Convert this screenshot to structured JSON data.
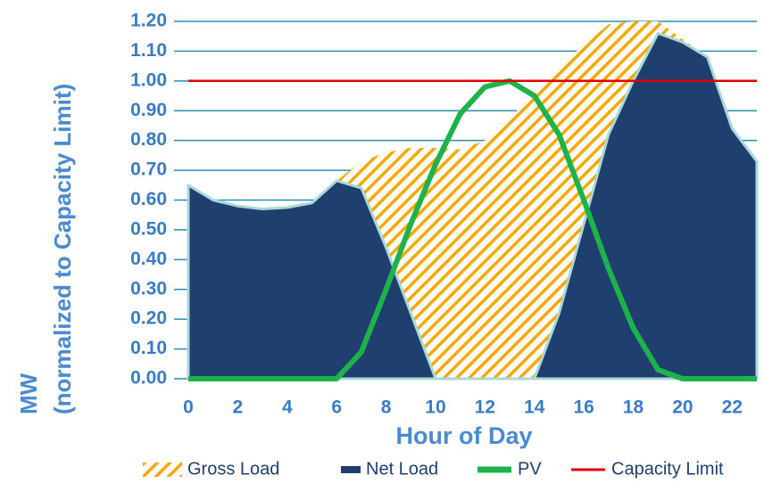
{
  "chart_data": {
    "type": "area",
    "xlabel": "Hour of Day",
    "ylabel": [
      "MW",
      "(normalized to Capacity Limit)"
    ],
    "x": [
      0,
      1,
      2,
      3,
      4,
      5,
      6,
      7,
      8,
      9,
      10,
      11,
      12,
      13,
      14,
      15,
      16,
      17,
      18,
      19,
      20,
      21,
      22,
      23
    ],
    "xlim": [
      0,
      23
    ],
    "xticks": [
      0,
      2,
      4,
      6,
      8,
      10,
      12,
      14,
      16,
      18,
      20,
      22
    ],
    "ylim": [
      0,
      1.2
    ],
    "yticks": [
      {
        "value": 0,
        "label": "0.00"
      },
      {
        "value": 0.1,
        "label": "0.10"
      },
      {
        "value": 0.2,
        "label": "0.20"
      },
      {
        "value": 0.3,
        "label": "0.30"
      },
      {
        "value": 0.4,
        "label": "0.40"
      },
      {
        "value": 0.5,
        "label": "0.50"
      },
      {
        "value": 0.6,
        "label": "0.60"
      },
      {
        "value": 0.7,
        "label": "0.70"
      },
      {
        "value": 0.8,
        "label": "0.80"
      },
      {
        "value": 0.9,
        "label": "0.90"
      },
      {
        "value": 1.0,
        "label": "1.00"
      },
      {
        "value": 1.1,
        "label": "1.10"
      },
      {
        "value": 1.2,
        "label": "1.20"
      }
    ],
    "grid": true,
    "legend": "bottom",
    "series": [
      {
        "name": "Gross Load",
        "kind": "area",
        "pattern": "hatch",
        "color": "#f5a800",
        "values": [
          0.65,
          0.6,
          0.58,
          0.57,
          0.575,
          0.59,
          0.665,
          0.73,
          0.76,
          0.775,
          0.775,
          0.77,
          0.8,
          0.87,
          0.97,
          1.05,
          1.12,
          1.19,
          1.2,
          1.2,
          1.14,
          1.08,
          0.84,
          0.73
        ]
      },
      {
        "name": "Net Load",
        "kind": "area",
        "color": "#1f3f6e",
        "values": [
          0.65,
          0.6,
          0.58,
          0.57,
          0.575,
          0.59,
          0.665,
          0.64,
          0.44,
          0.22,
          0,
          0,
          0,
          0,
          0,
          0.22,
          0.52,
          0.82,
          1.0,
          1.16,
          1.13,
          1.08,
          0.84,
          0.73
        ]
      },
      {
        "name": "PV",
        "kind": "line",
        "color": "#1db34a",
        "values": [
          0,
          0,
          0,
          0,
          0,
          0,
          0,
          0.09,
          0.3,
          0.52,
          0.72,
          0.89,
          0.98,
          1.0,
          0.95,
          0.82,
          0.6,
          0.37,
          0.17,
          0.03,
          0,
          0,
          0,
          0
        ]
      },
      {
        "name": "Capacity Limit",
        "kind": "line",
        "color": "#e00000",
        "values": [
          1,
          1,
          1,
          1,
          1,
          1,
          1,
          1,
          1,
          1,
          1,
          1,
          1,
          1,
          1,
          1,
          1,
          1,
          1,
          1,
          1,
          1,
          1,
          1
        ]
      }
    ]
  }
}
